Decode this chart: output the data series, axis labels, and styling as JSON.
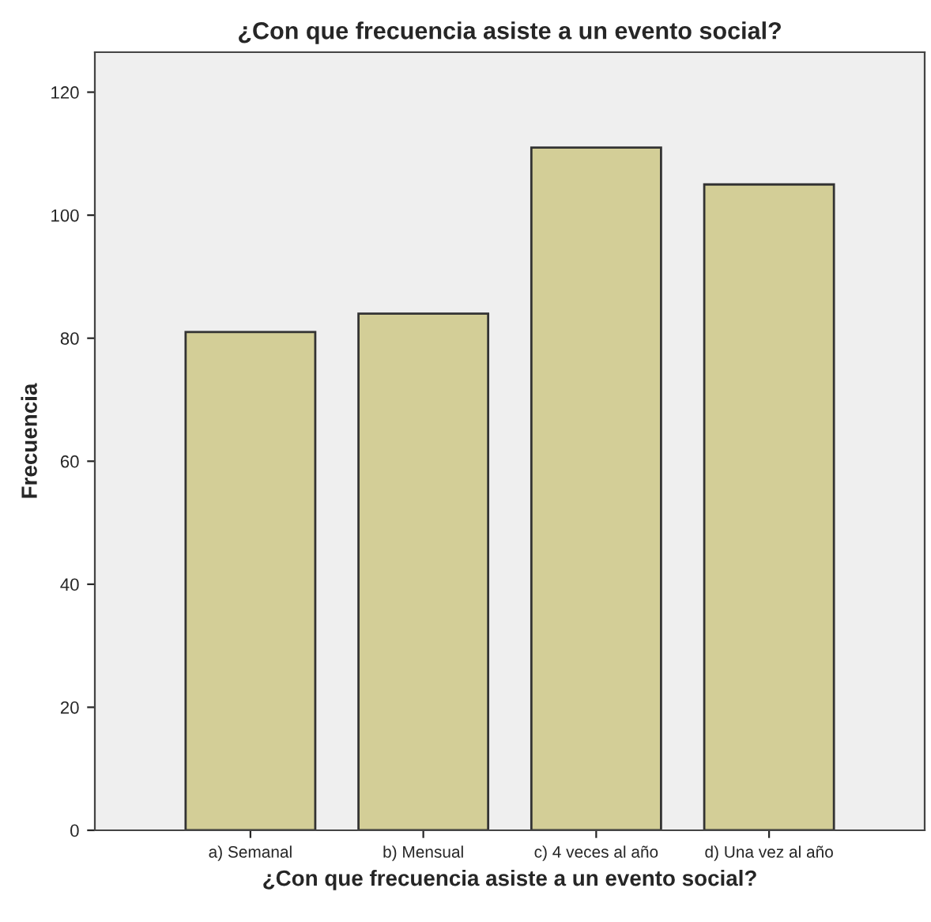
{
  "chart_data": {
    "type": "bar",
    "title": "¿Con que frecuencia asiste a un evento social?",
    "xlabel": "¿Con que frecuencia asiste a un evento social?",
    "ylabel": "Frecuencia",
    "categories": [
      "a) Semanal",
      "b) Mensual",
      "c) 4 veces al año",
      "d) Una vez al año"
    ],
    "values": [
      81,
      84,
      111,
      105
    ],
    "color": "#d3ce97",
    "ylim": [
      0,
      126.5
    ],
    "yticks": [
      0,
      20,
      40,
      60,
      80,
      100,
      120
    ],
    "grid": false,
    "legend": false
  }
}
